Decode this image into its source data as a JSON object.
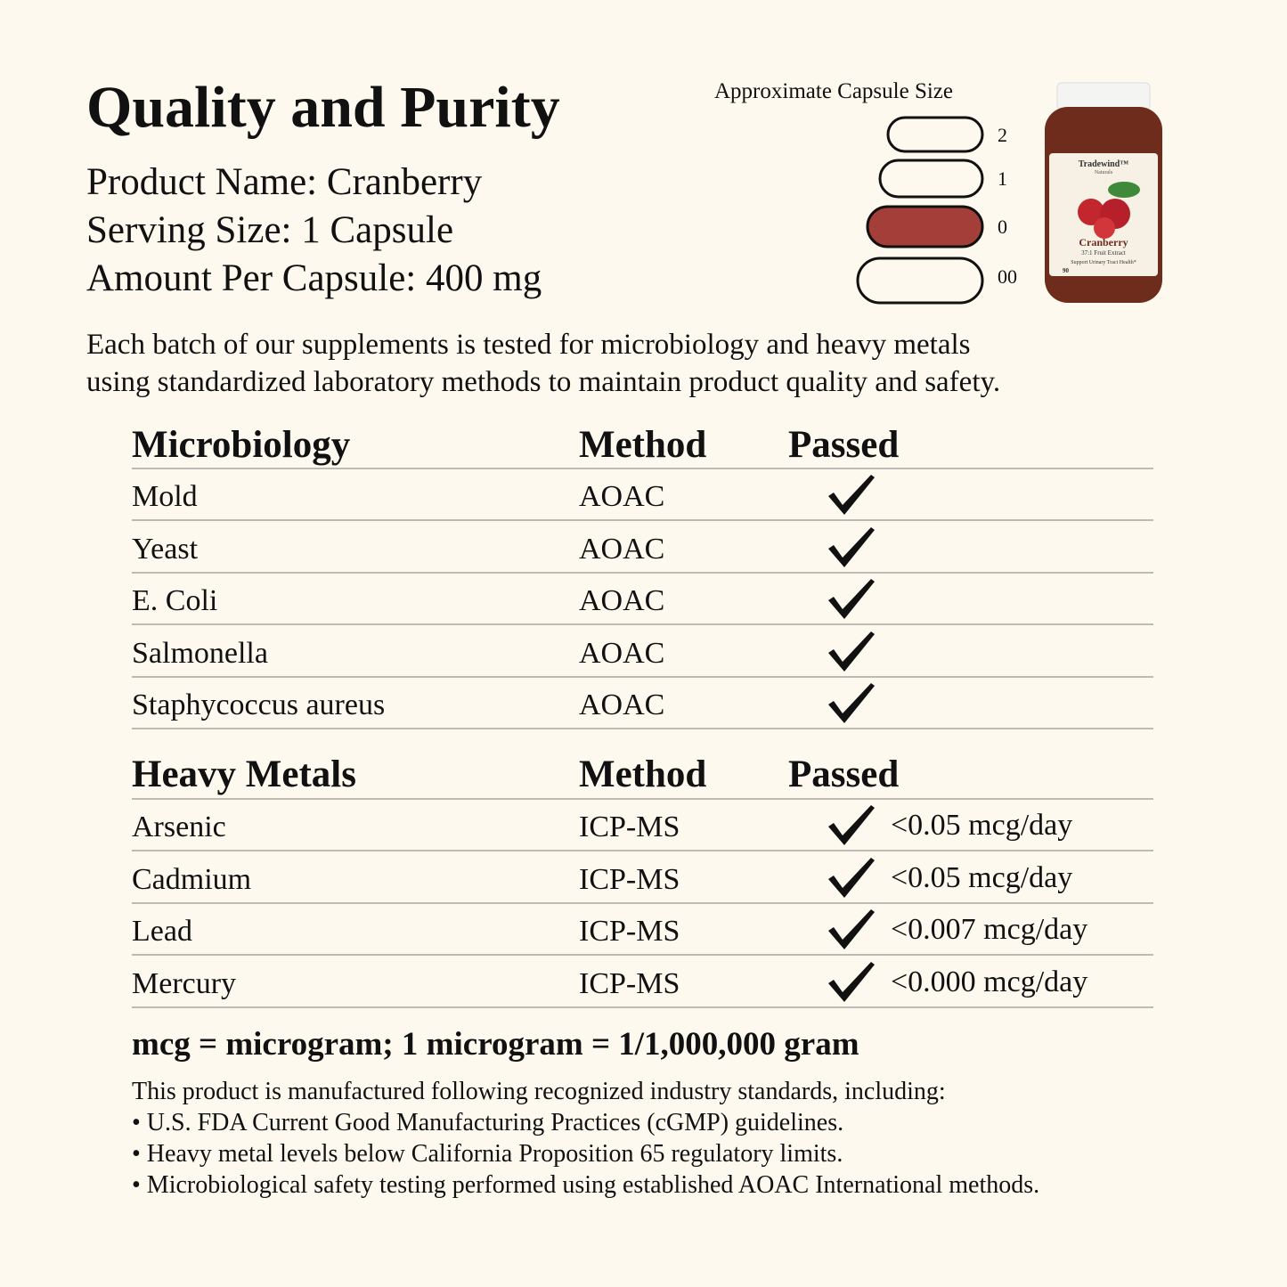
{
  "header": {
    "title": "Quality and Purity",
    "lines": [
      "Product Name: Cranberry",
      "Serving Size: 1 Capsule",
      "Amount Per Capsule: 400 mg"
    ]
  },
  "capsules": {
    "title": "Approximate Capsule Size",
    "sizes": [
      "2",
      "1",
      "0",
      "00"
    ]
  },
  "bottle": {
    "brand": "Tradewind™",
    "brand_sub": "Naturals",
    "name": "Cranberry",
    "subtitle": "37:1 Fruit Extract",
    "claim": "Support Urinary Tract Health*",
    "count": "90"
  },
  "intro": [
    "Each batch of our supplements is tested for microbiology and heavy metals",
    "using standardized laboratory methods to maintain product quality and safety."
  ],
  "microbiology": {
    "headers": [
      "Microbiology",
      "Method",
      "Passed"
    ],
    "rows": [
      [
        "Mold",
        "AOAC"
      ],
      [
        "Yeast",
        "AOAC"
      ],
      [
        "E. Coli",
        "AOAC"
      ],
      [
        "Salmonella",
        "AOAC"
      ],
      [
        "Staphycoccus aureus",
        "AOAC"
      ]
    ]
  },
  "heavy_metals": {
    "headers": [
      "Heavy Metals",
      "Method",
      "Passed"
    ],
    "rows": [
      [
        "Arsenic",
        "ICP-MS",
        "<0.05 mcg/day"
      ],
      [
        "Cadmium",
        "ICP-MS",
        "<0.05 mcg/day"
      ],
      [
        "Lead",
        "ICP-MS",
        "<0.007 mcg/day"
      ],
      [
        "Mercury",
        "ICP-MS",
        "<0.000 mcg/day"
      ]
    ]
  },
  "note": "mcg = microgram; 1 microgram = 1/1,000,000 gram",
  "footer": {
    "intro": "This product is manufactured following recognized industry standards, including:",
    "bullets": [
      "• U.S. FDA Current Good Manufacturing Practices (cGMP) guidelines.",
      "• Heavy metal levels below California Proposition 65 regulatory limits.",
      "• Microbiological safety testing performed using established AOAC International methods."
    ]
  }
}
